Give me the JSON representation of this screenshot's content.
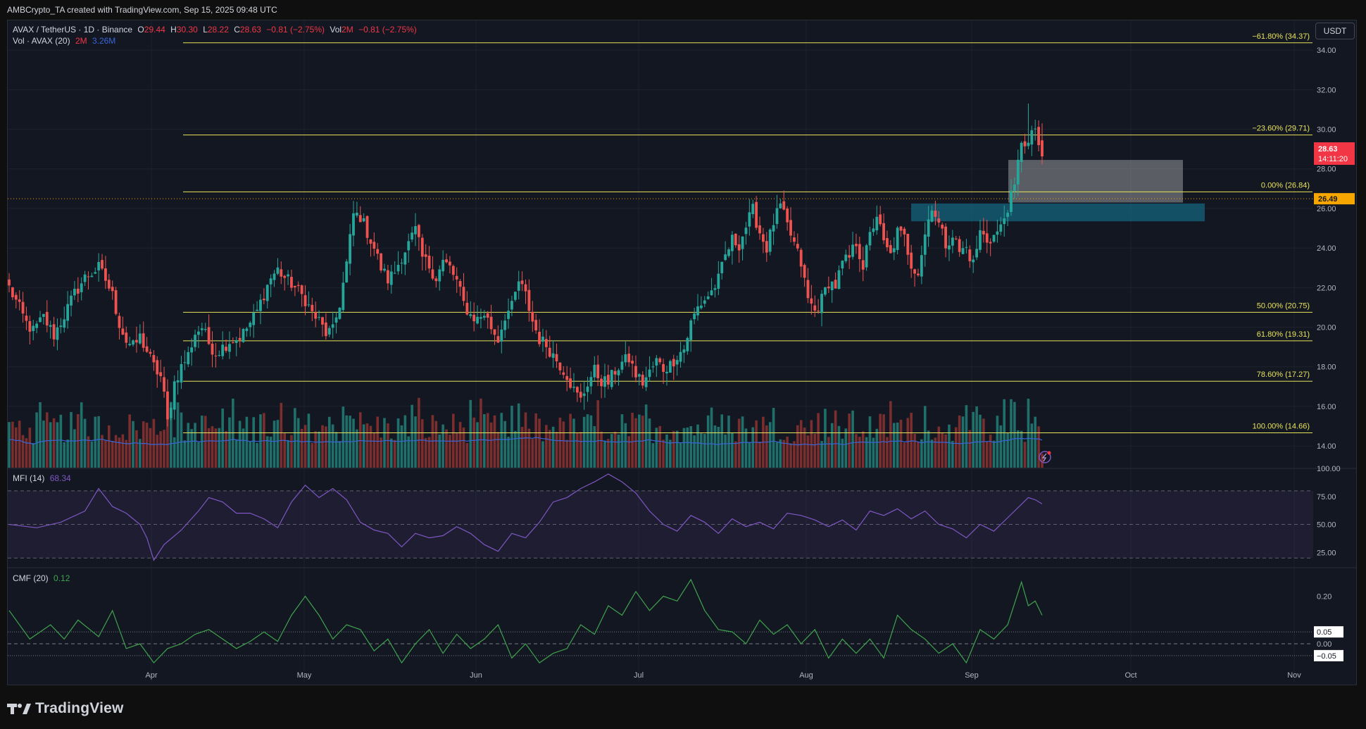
{
  "header": {
    "attribution": "AMBCrypto_TA created with TradingView.com, Sep 15, 2025 09:48 UTC"
  },
  "legend": {
    "symbol": "AVAX / TetherUS · 1D · Binance",
    "open_label": "O",
    "open": "29.44",
    "high_label": "H",
    "high": "30.30",
    "low_label": "L",
    "low": "28.22",
    "close_label": "C",
    "close": "28.63",
    "change": "−0.81 (−2.75%)",
    "vol_label": "Vol",
    "vol_value": "2M",
    "vol_change": "−0.81 (−2.75%)",
    "vol_ma_label": "Vol · AVAX (20)",
    "vol_ma_value1": "2M",
    "vol_ma_value2": "3.26M",
    "mfi_label": "MFI (14)",
    "mfi_value": "68.34",
    "cmf_label": "CMF (20)",
    "cmf_value": "0.12"
  },
  "toolbar": {
    "currency_button": "USDT"
  },
  "footer": {
    "logo_text": "TradingView"
  },
  "colors": {
    "background": "#131722",
    "up": "#26a69a",
    "down": "#ef5350",
    "vol_up": "#1f6f6a",
    "vol_down": "#7a2e2e",
    "vol_ma": "#3965d8",
    "fib": "#e8e35a",
    "mfi": "#7e57c2",
    "cmf": "#3fa34d",
    "price_label": "#f23645",
    "marker_label": "#f7a600"
  },
  "chart_data": {
    "type": "candlestick",
    "symbol": "AVAX/USDT",
    "timeframe": "1D",
    "x_axis_labels": [
      "Apr",
      "May",
      "Jun",
      "Jul",
      "Aug",
      "Sep",
      "Oct",
      "Nov"
    ],
    "y_axis": {
      "ylim": [
        12.9,
        35.5
      ],
      "ticks": [
        "34.00",
        "32.00",
        "30.00",
        "28.00",
        "26.00",
        "24.00",
        "22.00",
        "20.00",
        "18.00",
        "16.00",
        "14.00"
      ]
    },
    "fib_levels": [
      {
        "label": "−61.80% (34.37)",
        "value": 34.37
      },
      {
        "label": "−23.60% (29.71)",
        "value": 29.71
      },
      {
        "label": "0.00% (26.84)",
        "value": 26.84
      },
      {
        "label": "50.00% (20.75)",
        "value": 20.75
      },
      {
        "label": "61.80% (19.31)",
        "value": 19.31
      },
      {
        "label": "78.60% (17.27)",
        "value": 17.27
      },
      {
        "label": "100.00% (14.66)",
        "value": 14.66
      }
    ],
    "price_labels": {
      "last": "28.63",
      "countdown": "14:11:20",
      "marker": "26.49",
      "marker_value": 26.49
    },
    "zones": [
      {
        "name": "supply-zone-grey",
        "top": 28.45,
        "bottom": 26.3
      },
      {
        "name": "support-zone-teal",
        "top": 26.25,
        "bottom": 25.35
      }
    ],
    "anchor_points": [
      [
        0,
        22.0
      ],
      [
        2,
        21.3
      ],
      [
        5,
        20.2
      ],
      [
        7,
        19.8
      ],
      [
        10,
        20.5
      ],
      [
        13,
        19.6
      ],
      [
        16,
        20.6
      ],
      [
        19,
        21.7
      ],
      [
        22,
        22.5
      ],
      [
        26,
        23.0
      ],
      [
        28,
        22.4
      ],
      [
        30,
        21.6
      ],
      [
        32,
        20.2
      ],
      [
        34,
        19.3
      ],
      [
        36,
        19.0
      ],
      [
        38,
        19.5
      ],
      [
        40,
        18.8
      ],
      [
        42,
        18.0
      ],
      [
        44,
        17.5
      ],
      [
        45,
        16.5
      ],
      [
        46,
        15.2
      ],
      [
        47,
        16.2
      ],
      [
        48,
        17.2
      ],
      [
        50,
        18.0
      ],
      [
        52,
        18.6
      ],
      [
        54,
        19.7
      ],
      [
        56,
        20.0
      ],
      [
        58,
        19.2
      ],
      [
        60,
        18.7
      ],
      [
        62,
        19.0
      ],
      [
        64,
        19.3
      ],
      [
        66,
        19.4
      ],
      [
        68,
        19.7
      ],
      [
        70,
        20.2
      ],
      [
        72,
        20.8
      ],
      [
        74,
        21.7
      ],
      [
        76,
        22.5
      ],
      [
        78,
        22.9
      ],
      [
        80,
        22.5
      ],
      [
        82,
        22.2
      ],
      [
        84,
        21.8
      ],
      [
        86,
        21.4
      ],
      [
        88,
        20.7
      ],
      [
        90,
        20.3
      ],
      [
        92,
        19.7
      ],
      [
        94,
        19.8
      ],
      [
        96,
        21.2
      ],
      [
        98,
        23.2
      ],
      [
        100,
        25.7
      ],
      [
        102,
        25.6
      ],
      [
        104,
        24.8
      ],
      [
        106,
        24.0
      ],
      [
        108,
        23.0
      ],
      [
        110,
        22.4
      ],
      [
        112,
        22.8
      ],
      [
        114,
        23.6
      ],
      [
        116,
        24.2
      ],
      [
        118,
        24.9
      ],
      [
        120,
        23.5
      ],
      [
        122,
        23.1
      ],
      [
        124,
        22.5
      ],
      [
        126,
        23.3
      ],
      [
        128,
        23.0
      ],
      [
        130,
        22.3
      ],
      [
        132,
        21.2
      ],
      [
        134,
        20.6
      ],
      [
        136,
        20.4
      ],
      [
        138,
        20.7
      ],
      [
        140,
        20.0
      ],
      [
        142,
        19.4
      ],
      [
        144,
        20.6
      ],
      [
        146,
        21.0
      ],
      [
        148,
        22.3
      ],
      [
        150,
        21.6
      ],
      [
        152,
        20.3
      ],
      [
        154,
        19.4
      ],
      [
        156,
        19.1
      ],
      [
        158,
        18.6
      ],
      [
        160,
        18.1
      ],
      [
        162,
        17.6
      ],
      [
        164,
        16.8
      ],
      [
        166,
        16.3
      ],
      [
        168,
        17.2
      ],
      [
        170,
        17.8
      ],
      [
        172,
        17.3
      ],
      [
        174,
        17.2
      ],
      [
        176,
        17.8
      ],
      [
        178,
        18.2
      ],
      [
        180,
        18.4
      ],
      [
        182,
        17.6
      ],
      [
        184,
        17.2
      ],
      [
        186,
        17.7
      ],
      [
        188,
        18.3
      ],
      [
        190,
        17.9
      ],
      [
        192,
        18.1
      ],
      [
        194,
        18.6
      ],
      [
        196,
        18.9
      ],
      [
        198,
        20.2
      ],
      [
        200,
        21.0
      ],
      [
        202,
        21.4
      ],
      [
        204,
        21.8
      ],
      [
        206,
        22.4
      ],
      [
        208,
        23.6
      ],
      [
        210,
        24.4
      ],
      [
        212,
        24.2
      ],
      [
        214,
        25.1
      ],
      [
        216,
        25.9
      ],
      [
        218,
        24.8
      ],
      [
        220,
        24.0
      ],
      [
        222,
        25.3
      ],
      [
        224,
        26.1
      ],
      [
        226,
        25.1
      ],
      [
        228,
        24.2
      ],
      [
        230,
        23.2
      ],
      [
        232,
        21.4
      ],
      [
        234,
        20.8
      ],
      [
        236,
        21.4
      ],
      [
        238,
        22.3
      ],
      [
        240,
        22.1
      ],
      [
        242,
        23.2
      ],
      [
        244,
        23.5
      ],
      [
        246,
        24.3
      ],
      [
        248,
        23.1
      ],
      [
        250,
        24.6
      ],
      [
        252,
        25.7
      ],
      [
        254,
        24.2
      ],
      [
        256,
        23.6
      ],
      [
        258,
        24.8
      ],
      [
        260,
        24.5
      ],
      [
        262,
        23.2
      ],
      [
        264,
        22.8
      ],
      [
        266,
        24.7
      ],
      [
        268,
        26.2
      ],
      [
        270,
        25.2
      ],
      [
        272,
        24.2
      ],
      [
        274,
        24.7
      ],
      [
        276,
        23.8
      ],
      [
        278,
        24.0
      ],
      [
        280,
        23.2
      ],
      [
        282,
        24.8
      ],
      [
        284,
        24.4
      ],
      [
        286,
        24.6
      ],
      [
        288,
        25.0
      ],
      [
        290,
        26.1
      ],
      [
        292,
        27.0
      ],
      [
        294,
        29.5
      ],
      [
        296,
        29.2
      ],
      [
        298,
        30.1
      ],
      [
        299,
        29.44
      ],
      [
        300,
        28.63
      ]
    ],
    "series": [
      {
        "name": "MFI (14)",
        "ylim": [
          12,
          100
        ],
        "ticks": [
          "100.00",
          "75.00",
          "50.00",
          "25.00"
        ],
        "guides": [
          80,
          50,
          20
        ],
        "points": [
          [
            0,
            50
          ],
          [
            8,
            47
          ],
          [
            15,
            52
          ],
          [
            22,
            62
          ],
          [
            26,
            82
          ],
          [
            30,
            66
          ],
          [
            34,
            60
          ],
          [
            38,
            50
          ],
          [
            40,
            38
          ],
          [
            42,
            18
          ],
          [
            45,
            32
          ],
          [
            50,
            45
          ],
          [
            55,
            62
          ],
          [
            58,
            74
          ],
          [
            62,
            70
          ],
          [
            66,
            60
          ],
          [
            70,
            60
          ],
          [
            74,
            55
          ],
          [
            78,
            47
          ],
          [
            82,
            70
          ],
          [
            86,
            85
          ],
          [
            90,
            74
          ],
          [
            94,
            82
          ],
          [
            98,
            72
          ],
          [
            102,
            52
          ],
          [
            106,
            45
          ],
          [
            110,
            42
          ],
          [
            114,
            30
          ],
          [
            118,
            42
          ],
          [
            122,
            38
          ],
          [
            126,
            40
          ],
          [
            130,
            48
          ],
          [
            134,
            42
          ],
          [
            138,
            32
          ],
          [
            142,
            26
          ],
          [
            146,
            42
          ],
          [
            150,
            38
          ],
          [
            154,
            52
          ],
          [
            158,
            70
          ],
          [
            162,
            74
          ],
          [
            166,
            82
          ],
          [
            170,
            88
          ],
          [
            174,
            95
          ],
          [
            178,
            88
          ],
          [
            182,
            78
          ],
          [
            186,
            62
          ],
          [
            190,
            50
          ],
          [
            194,
            44
          ],
          [
            198,
            58
          ],
          [
            202,
            52
          ],
          [
            206,
            42
          ],
          [
            210,
            55
          ],
          [
            214,
            48
          ],
          [
            218,
            52
          ],
          [
            222,
            46
          ],
          [
            226,
            60
          ],
          [
            230,
            58
          ],
          [
            234,
            54
          ],
          [
            238,
            48
          ],
          [
            242,
            54
          ],
          [
            246,
            45
          ],
          [
            250,
            62
          ],
          [
            254,
            58
          ],
          [
            258,
            64
          ],
          [
            262,
            55
          ],
          [
            266,
            62
          ],
          [
            270,
            50
          ],
          [
            274,
            46
          ],
          [
            278,
            38
          ],
          [
            282,
            50
          ],
          [
            286,
            44
          ],
          [
            290,
            56
          ],
          [
            294,
            68
          ],
          [
            296,
            74
          ],
          [
            298,
            72
          ],
          [
            300,
            68.34
          ]
        ]
      },
      {
        "name": "CMF (20)",
        "ylim": [
          -0.16,
          0.32
        ],
        "ticks": [
          "0.20",
          "0.00"
        ],
        "badges": [
          "0.05",
          "−0.05"
        ],
        "guides": [
          0.05,
          0.0,
          -0.05
        ],
        "points": [
          [
            0,
            0.14
          ],
          [
            6,
            0.02
          ],
          [
            12,
            0.08
          ],
          [
            16,
            0.02
          ],
          [
            20,
            0.1
          ],
          [
            26,
            0.03
          ],
          [
            30,
            0.14
          ],
          [
            34,
            -0.02
          ],
          [
            38,
            0.0
          ],
          [
            42,
            -0.08
          ],
          [
            46,
            -0.02
          ],
          [
            50,
            0.0
          ],
          [
            54,
            0.04
          ],
          [
            58,
            0.06
          ],
          [
            62,
            0.02
          ],
          [
            66,
            -0.02
          ],
          [
            70,
            0.01
          ],
          [
            74,
            0.05
          ],
          [
            78,
            0.01
          ],
          [
            82,
            0.12
          ],
          [
            86,
            0.2
          ],
          [
            90,
            0.12
          ],
          [
            94,
            0.02
          ],
          [
            98,
            0.08
          ],
          [
            102,
            0.06
          ],
          [
            106,
            -0.03
          ],
          [
            110,
            0.02
          ],
          [
            114,
            -0.08
          ],
          [
            118,
            0.0
          ],
          [
            122,
            0.06
          ],
          [
            126,
            -0.04
          ],
          [
            130,
            0.04
          ],
          [
            134,
            -0.02
          ],
          [
            138,
            0.02
          ],
          [
            142,
            0.08
          ],
          [
            146,
            -0.06
          ],
          [
            150,
            0.0
          ],
          [
            154,
            -0.08
          ],
          [
            158,
            -0.04
          ],
          [
            162,
            -0.02
          ],
          [
            166,
            0.08
          ],
          [
            170,
            0.04
          ],
          [
            174,
            0.16
          ],
          [
            178,
            0.12
          ],
          [
            182,
            0.22
          ],
          [
            186,
            0.14
          ],
          [
            190,
            0.2
          ],
          [
            194,
            0.18
          ],
          [
            198,
            0.27
          ],
          [
            202,
            0.14
          ],
          [
            206,
            0.06
          ],
          [
            210,
            0.05
          ],
          [
            214,
            0.0
          ],
          [
            218,
            0.1
          ],
          [
            222,
            0.04
          ],
          [
            226,
            0.08
          ],
          [
            230,
            0.0
          ],
          [
            234,
            0.06
          ],
          [
            238,
            -0.06
          ],
          [
            242,
            0.02
          ],
          [
            246,
            -0.04
          ],
          [
            250,
            0.02
          ],
          [
            254,
            -0.06
          ],
          [
            258,
            0.12
          ],
          [
            262,
            0.06
          ],
          [
            266,
            0.02
          ],
          [
            270,
            -0.04
          ],
          [
            274,
            0.0
          ],
          [
            278,
            -0.08
          ],
          [
            282,
            0.06
          ],
          [
            286,
            0.02
          ],
          [
            290,
            0.08
          ],
          [
            294,
            0.26
          ],
          [
            296,
            0.16
          ],
          [
            298,
            0.18
          ],
          [
            300,
            0.12
          ]
        ]
      }
    ]
  }
}
